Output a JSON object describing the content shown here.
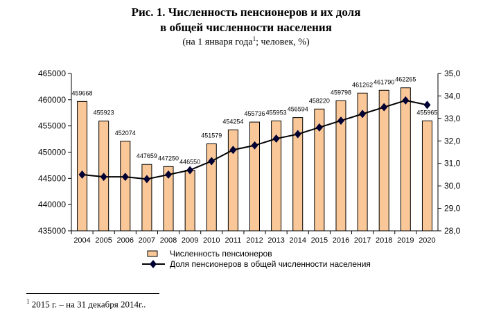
{
  "title": {
    "line1": "Рис. 1. Численность пенсионеров и их доля",
    "line2": "в общей численности населения",
    "line3_pre": "(на 1 января года",
    "line3_sup": "1",
    "line3_post": "; человек, %)"
  },
  "footnote": {
    "sup": "1",
    "text": " 2015 г. – на 31 декабря 2014г.."
  },
  "chart_data": {
    "type": "bar+line",
    "categories": [
      "2004",
      "2005",
      "2006",
      "2007",
      "2008",
      "2009",
      "2010",
      "2011",
      "2012",
      "2013",
      "2014",
      "2015",
      "2016",
      "2017",
      "2018",
      "2019",
      "2020"
    ],
    "series": [
      {
        "name": "Численность пенсионеров",
        "type": "bar",
        "axis": "left",
        "color": "#FAC898",
        "values": [
          459668,
          455923,
          452074,
          447659,
          447250,
          446550,
          451579,
          454254,
          455736,
          455953,
          456594,
          458220,
          459798,
          461262,
          461790,
          462265,
          455965
        ]
      },
      {
        "name": "Доля пенсионеров в общей численности населения",
        "type": "line",
        "axis": "right",
        "color": "#000033",
        "values": [
          30.5,
          30.4,
          30.4,
          30.3,
          30.5,
          30.7,
          31.1,
          31.6,
          31.8,
          32.1,
          32.3,
          32.6,
          32.9,
          33.2,
          33.5,
          33.8,
          33.6
        ]
      }
    ],
    "yleft": {
      "range": [
        435000,
        465000
      ],
      "ticks": [
        "435000",
        "440000",
        "445000",
        "450000",
        "455000",
        "460000",
        "465000"
      ]
    },
    "yright": {
      "range": [
        28,
        35
      ],
      "ticks": [
        "28,0",
        "29,0",
        "30,0",
        "31,0",
        "32,0",
        "33,0",
        "34,0",
        "35,0"
      ]
    },
    "legend": "bottom",
    "grid": false
  }
}
